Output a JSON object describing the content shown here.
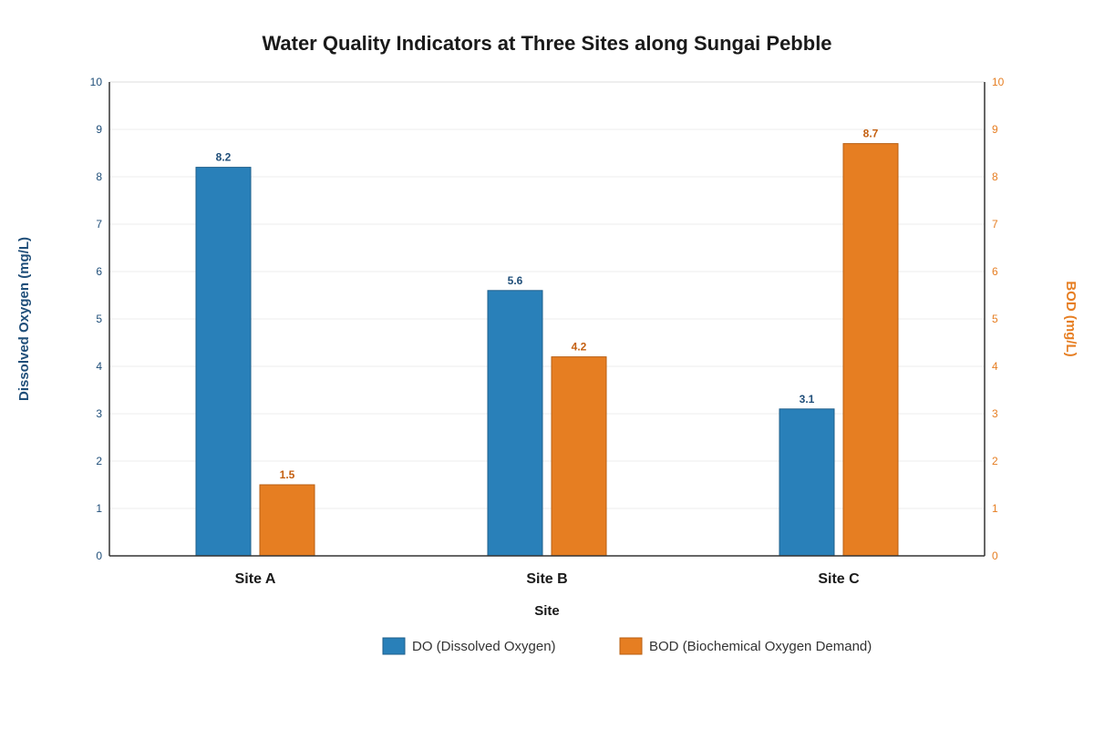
{
  "chart_data": {
    "type": "bar",
    "title": "Water Quality Indicators at Three Sites along Sungai Pebble",
    "xlabel": "Site",
    "ylabel_left": "Dissolved Oxygen (mg/L)",
    "ylabel_right": "BOD (mg/L)",
    "categories": [
      "Site A",
      "Site B",
      "Site C"
    ],
    "ylim_left": [
      0,
      10
    ],
    "ylim_right": [
      0,
      10
    ],
    "yticks_left": [
      0,
      1,
      2,
      3,
      4,
      5,
      6,
      7,
      8,
      9,
      10
    ],
    "yticks_right": [
      0,
      1,
      2,
      3,
      4,
      5,
      6,
      7,
      8,
      9,
      10
    ],
    "grid": true,
    "legend_position": "bottom",
    "series": [
      {
        "name": "DO (Dissolved Oxygen)",
        "axis": "left",
        "values": [
          8.2,
          5.6,
          3.1
        ],
        "color": "#2980b9",
        "label_color": "#1f4e79"
      },
      {
        "name": "BOD (Biochemical Oxygen Demand)",
        "axis": "right",
        "values": [
          1.5,
          4.2,
          8.7
        ],
        "color": "#e67e22",
        "label_color": "#c45f10"
      }
    ]
  }
}
